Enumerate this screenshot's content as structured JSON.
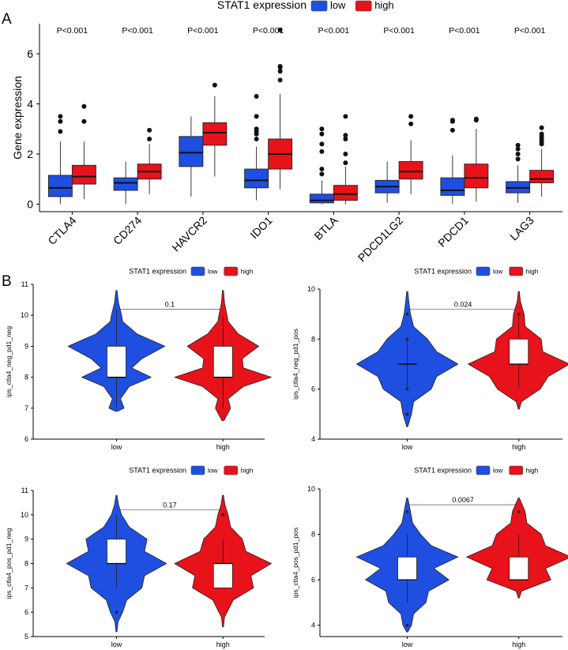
{
  "colors": {
    "low": "#1f4fe0",
    "high": "#e8121b",
    "axis": "#000000",
    "median": "#000000",
    "white": "#ffffff"
  },
  "panel_labels": {
    "a": "A",
    "b": "B"
  },
  "chart_data": [
    {
      "id": "A",
      "type": "box",
      "legend_title": "STAT1 expression",
      "legend_entries": [
        "low",
        "high"
      ],
      "ylabel": "Gene expression",
      "xlabel": "",
      "ylim": [
        -0.3,
        7.2
      ],
      "yticks": [
        0,
        2,
        4,
        6
      ],
      "categories": [
        "CTLA4",
        "CD274",
        "HAVCR2",
        "IDO1",
        "BTLA",
        "PDCD1LG2",
        "PDCD1",
        "LAG3"
      ],
      "pvalues": [
        "P<0.001",
        "P<0.001",
        "P<0.001",
        "P<0.001",
        "P<0.001",
        "P<0.001",
        "P<0.001",
        "P<0.001"
      ],
      "series": [
        {
          "name": "low",
          "boxes": [
            {
              "min": 0.0,
              "q1": 0.3,
              "median": 0.65,
              "q3": 1.15,
              "max": 2.5,
              "outliers": [
                2.9,
                3.3,
                3.5
              ]
            },
            {
              "min": 0.0,
              "q1": 0.55,
              "median": 0.85,
              "q3": 1.05,
              "max": 1.7,
              "outliers": []
            },
            {
              "min": 0.3,
              "q1": 1.5,
              "median": 2.05,
              "q3": 2.7,
              "max": 3.5,
              "outliers": []
            },
            {
              "min": 0.15,
              "q1": 0.65,
              "median": 0.95,
              "q3": 1.4,
              "max": 2.3,
              "outliers": [
                2.6,
                2.8,
                2.9,
                3.0,
                3.5,
                4.3
              ]
            },
            {
              "min": 0.0,
              "q1": 0.05,
              "median": 0.15,
              "q3": 0.4,
              "max": 0.95,
              "outliers": [
                1.2,
                1.4,
                2.1,
                2.4,
                2.8,
                3.0
              ]
            },
            {
              "min": 0.05,
              "q1": 0.45,
              "median": 0.7,
              "q3": 0.95,
              "max": 1.7,
              "outliers": []
            },
            {
              "min": 0.0,
              "q1": 0.35,
              "median": 0.55,
              "q3": 1.05,
              "max": 1.95,
              "outliers": [
                2.95,
                3.3,
                3.35
              ]
            },
            {
              "min": 0.05,
              "q1": 0.45,
              "median": 0.65,
              "q3": 0.9,
              "max": 1.55,
              "outliers": [
                1.8,
                2.0,
                2.2,
                2.35
              ]
            }
          ]
        },
        {
          "name": "high",
          "boxes": [
            {
              "min": 0.2,
              "q1": 0.8,
              "median": 1.1,
              "q3": 1.55,
              "max": 2.5,
              "outliers": [
                3.3,
                3.9
              ]
            },
            {
              "min": 0.4,
              "q1": 1.0,
              "median": 1.3,
              "q3": 1.6,
              "max": 2.4,
              "outliers": [
                2.6,
                2.95
              ]
            },
            {
              "min": 1.1,
              "q1": 2.35,
              "median": 2.85,
              "q3": 3.25,
              "max": 4.3,
              "outliers": [
                4.75
              ]
            },
            {
              "min": 0.6,
              "q1": 1.4,
              "median": 2.0,
              "q3": 2.6,
              "max": 4.4,
              "outliers": [
                4.95,
                5.3,
                5.45,
                5.5,
                6.95
              ]
            },
            {
              "min": 0.0,
              "q1": 0.15,
              "median": 0.4,
              "q3": 0.75,
              "max": 1.5,
              "outliers": [
                1.65,
                2.0,
                2.6,
                2.75,
                3.5
              ]
            },
            {
              "min": 0.4,
              "q1": 1.0,
              "median": 1.3,
              "q3": 1.7,
              "max": 2.55,
              "outliers": [
                3.2,
                3.5
              ]
            },
            {
              "min": 0.1,
              "q1": 0.65,
              "median": 1.05,
              "q3": 1.6,
              "max": 3.0,
              "outliers": [
                3.35,
                3.4
              ]
            },
            {
              "min": 0.3,
              "q1": 0.85,
              "median": 1.0,
              "q3": 1.35,
              "max": 2.2,
              "outliers": [
                2.4,
                2.5,
                2.6,
                2.7,
                2.8,
                3.05
              ]
            }
          ]
        }
      ]
    },
    {
      "id": "B1",
      "type": "violin",
      "legend_title": "STAT1 expression",
      "legend_entries": [
        "low",
        "high"
      ],
      "ylabel": "ips_ctla4_neg_pd1_neg",
      "ylim": [
        6,
        11
      ],
      "yticks": [
        6,
        7,
        8,
        9,
        10,
        11
      ],
      "categories": [
        "low",
        "high"
      ],
      "pvalue": "0.1",
      "bracket_y": 10.2,
      "groups": [
        {
          "name": "low",
          "min": 7.0,
          "q1": 8.0,
          "median": 8.0,
          "q3": 9.0,
          "max": 10.2,
          "outliers": [],
          "density": [
            [
              6.9,
              0.02
            ],
            [
              7.0,
              0.15
            ],
            [
              7.3,
              0.08
            ],
            [
              7.7,
              0.25
            ],
            [
              8.0,
              0.68
            ],
            [
              8.3,
              0.3
            ],
            [
              8.6,
              0.5
            ],
            [
              9.0,
              0.95
            ],
            [
              9.4,
              0.4
            ],
            [
              9.8,
              0.12
            ],
            [
              10.0,
              0.1
            ],
            [
              10.4,
              0.04
            ],
            [
              10.8,
              0.01
            ]
          ]
        },
        {
          "name": "high",
          "min": 7.0,
          "q1": 8.0,
          "median": 8.0,
          "q3": 9.0,
          "max": 10.0,
          "outliers": [],
          "density": [
            [
              6.6,
              0.02
            ],
            [
              7.0,
              0.15
            ],
            [
              7.3,
              0.1
            ],
            [
              7.7,
              0.4
            ],
            [
              8.0,
              0.95
            ],
            [
              8.3,
              0.4
            ],
            [
              8.6,
              0.38
            ],
            [
              9.0,
              0.7
            ],
            [
              9.4,
              0.3
            ],
            [
              9.8,
              0.1
            ],
            [
              10.0,
              0.08
            ],
            [
              10.4,
              0.03
            ],
            [
              10.8,
              0.01
            ]
          ]
        }
      ]
    },
    {
      "id": "B2",
      "type": "violin",
      "legend_title": "STAT1 expression",
      "legend_entries": [
        "low",
        "high"
      ],
      "ylabel": "ips_ctla4_neg_pd1_pos",
      "ylim": [
        4,
        10
      ],
      "yticks": [
        4,
        6,
        8,
        10
      ],
      "categories": [
        "low",
        "high"
      ],
      "pvalue": "0.024",
      "bracket_y": 9.2,
      "groups": [
        {
          "name": "low",
          "min": 6.0,
          "q1": 7.0,
          "median": 7.0,
          "q3": 7.0,
          "max": 8.0,
          "outliers": [
            5.0,
            6.0,
            8.0,
            9.0
          ],
          "density": [
            [
              4.5,
              0.01
            ],
            [
              5.0,
              0.08
            ],
            [
              5.5,
              0.12
            ],
            [
              6.0,
              0.45
            ],
            [
              6.5,
              0.55
            ],
            [
              7.0,
              0.95
            ],
            [
              7.5,
              0.55
            ],
            [
              8.0,
              0.38
            ],
            [
              8.5,
              0.12
            ],
            [
              9.0,
              0.06
            ],
            [
              9.5,
              0.03
            ],
            [
              9.9,
              0.01
            ]
          ]
        },
        {
          "name": "high",
          "min": 6.0,
          "q1": 7.0,
          "median": 7.0,
          "q3": 8.0,
          "max": 9.0,
          "outliers": [
            9.0
          ],
          "density": [
            [
              5.2,
              0.01
            ],
            [
              5.5,
              0.05
            ],
            [
              6.0,
              0.4
            ],
            [
              6.5,
              0.55
            ],
            [
              7.0,
              0.95
            ],
            [
              7.5,
              0.45
            ],
            [
              8.0,
              0.42
            ],
            [
              8.5,
              0.12
            ],
            [
              9.0,
              0.1
            ],
            [
              9.5,
              0.03
            ],
            [
              9.9,
              0.01
            ]
          ]
        }
      ]
    },
    {
      "id": "B3",
      "type": "violin",
      "legend_title": "STAT1 expression",
      "legend_entries": [
        "low",
        "high"
      ],
      "ylabel": "ips_ctla4_pos_pd1_neg",
      "ylim": [
        5,
        11
      ],
      "yticks": [
        5,
        6,
        7,
        8,
        9,
        10,
        11
      ],
      "categories": [
        "low",
        "high"
      ],
      "pvalue": "0.17",
      "bracket_y": 10.2,
      "groups": [
        {
          "name": "low",
          "min": 7.0,
          "q1": 8.0,
          "median": 8.0,
          "q3": 9.0,
          "max": 10.0,
          "outliers": [
            6.0
          ],
          "density": [
            [
              5.2,
              0.01
            ],
            [
              5.6,
              0.03
            ],
            [
              6.0,
              0.12
            ],
            [
              6.5,
              0.2
            ],
            [
              7.0,
              0.5
            ],
            [
              7.5,
              0.55
            ],
            [
              8.0,
              0.98
            ],
            [
              8.5,
              0.55
            ],
            [
              9.0,
              0.6
            ],
            [
              9.5,
              0.25
            ],
            [
              10.0,
              0.1
            ],
            [
              10.4,
              0.04
            ],
            [
              10.8,
              0.01
            ]
          ]
        },
        {
          "name": "high",
          "min": 7.0,
          "q1": 7.0,
          "median": 8.0,
          "q3": 8.0,
          "max": 9.0,
          "outliers": [
            10.0
          ],
          "density": [
            [
              5.4,
              0.01
            ],
            [
              5.8,
              0.03
            ],
            [
              6.0,
              0.08
            ],
            [
              6.5,
              0.2
            ],
            [
              7.0,
              0.6
            ],
            [
              7.5,
              0.55
            ],
            [
              8.0,
              0.95
            ],
            [
              8.5,
              0.45
            ],
            [
              9.0,
              0.38
            ],
            [
              9.5,
              0.15
            ],
            [
              10.0,
              0.1
            ],
            [
              10.4,
              0.04
            ],
            [
              10.8,
              0.01
            ]
          ]
        }
      ]
    },
    {
      "id": "B4",
      "type": "violin",
      "legend_title": "STAT1 expression",
      "legend_entries": [
        "low",
        "high"
      ],
      "ylabel": "ips_ctla4_pos_pd1_pos",
      "ylim": [
        3.5,
        10
      ],
      "yticks": [
        4,
        6,
        8,
        10
      ],
      "categories": [
        "low",
        "high"
      ],
      "pvalue": "0.0067",
      "bracket_y": 9.3,
      "groups": [
        {
          "name": "low",
          "min": 5.0,
          "q1": 6.0,
          "median": 6.0,
          "q3": 7.0,
          "max": 8.0,
          "outliers": [
            4.0,
            9.0
          ],
          "density": [
            [
              3.7,
              0.01
            ],
            [
              4.0,
              0.08
            ],
            [
              4.5,
              0.12
            ],
            [
              5.0,
              0.35
            ],
            [
              5.5,
              0.4
            ],
            [
              6.0,
              0.78
            ],
            [
              6.5,
              0.5
            ],
            [
              7.0,
              0.95
            ],
            [
              7.5,
              0.45
            ],
            [
              8.0,
              0.25
            ],
            [
              8.5,
              0.1
            ],
            [
              9.0,
              0.06
            ],
            [
              9.6,
              0.01
            ]
          ]
        },
        {
          "name": "high",
          "min": 6.0,
          "q1": 6.0,
          "median": 6.0,
          "q3": 7.0,
          "max": 8.0,
          "outliers": [
            9.0
          ],
          "density": [
            [
              5.2,
              0.01
            ],
            [
              5.5,
              0.05
            ],
            [
              6.0,
              0.6
            ],
            [
              6.5,
              0.5
            ],
            [
              7.0,
              0.98
            ],
            [
              7.5,
              0.5
            ],
            [
              8.0,
              0.42
            ],
            [
              8.5,
              0.15
            ],
            [
              9.0,
              0.12
            ],
            [
              9.6,
              0.01
            ]
          ]
        }
      ]
    }
  ]
}
